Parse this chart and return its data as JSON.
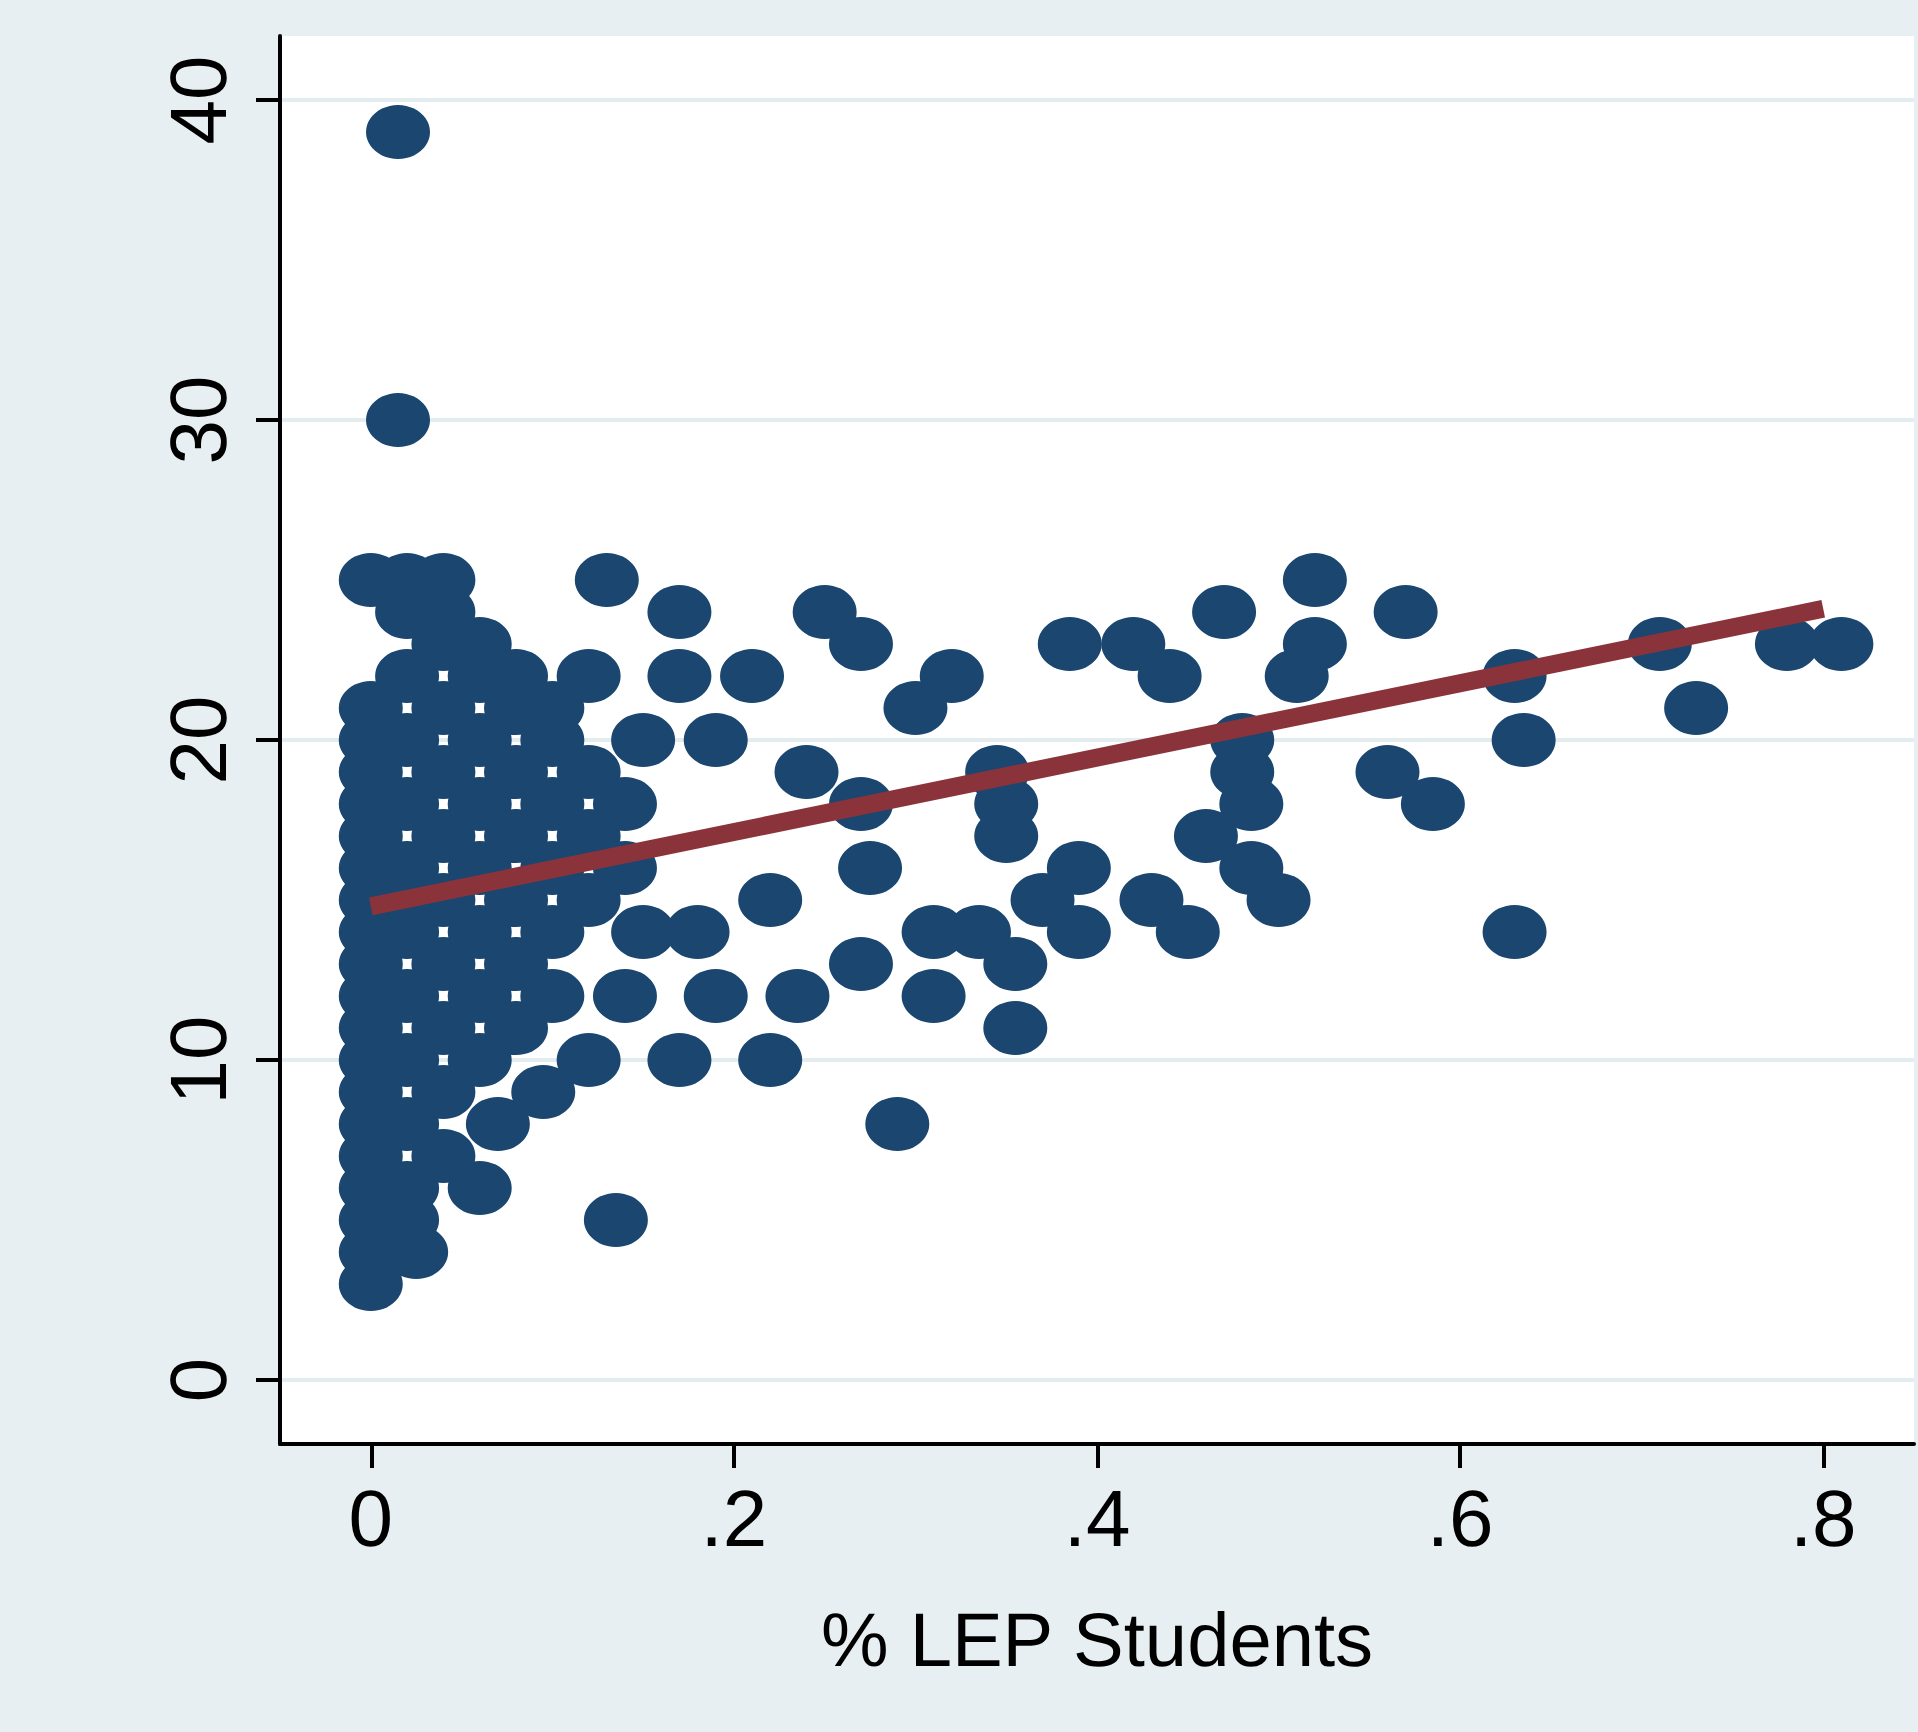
{
  "chart_data": {
    "type": "scatter",
    "xlabel": "% LEP Students",
    "xlim": [
      -0.05,
      0.85
    ],
    "ylim": [
      -2,
      42
    ],
    "xticks": [
      {
        "value": 0,
        "label": "0"
      },
      {
        "value": 0.2,
        "label": ".2"
      },
      {
        "value": 0.4,
        "label": ".4"
      },
      {
        "value": 0.6,
        "label": ".6"
      },
      {
        "value": 0.8,
        "label": ".8"
      }
    ],
    "yticks": [
      0,
      10,
      20,
      30,
      40
    ],
    "grid": "y",
    "series": [
      {
        "color": "#1a4670",
        "x": [
          0.015,
          0.015,
          0.13,
          0.52,
          0.25,
          0.47,
          0.57,
          0.17,
          0.385,
          0.42,
          0.52,
          0.27,
          0.71,
          0.78,
          0.81,
          0.44,
          0.51,
          0.63,
          0.32,
          0.21,
          0.17,
          0.73,
          0.3,
          0.635,
          0.48,
          0.19,
          0.345,
          0.56,
          0.24,
          0.48,
          0.585,
          0.485,
          0.27,
          0.35,
          0.46,
          0.35,
          0.275,
          0.39,
          0.485,
          0.22,
          0.37,
          0.43,
          0.5,
          0.18,
          0.31,
          0.39,
          0.45,
          0.63,
          0.335,
          0.27,
          0.355,
          0.19,
          0.235,
          0.31,
          0.355,
          0.17,
          0.22,
          0.12,
          0.29,
          0.135,
          0.06,
          0.025,
          0,
          0.07,
          0.095,
          0,
          0,
          0,
          0,
          0,
          0,
          0,
          0,
          0,
          0,
          0,
          0,
          0,
          0,
          0,
          0,
          0,
          0,
          0,
          0.02,
          0.02,
          0.02,
          0.02,
          0.02,
          0.02,
          0.02,
          0.02,
          0.02,
          0.02,
          0.02,
          0.02,
          0.04,
          0.04,
          0.04,
          0.04,
          0.04,
          0.04,
          0.04,
          0.04,
          0.04,
          0.04,
          0.04,
          0.06,
          0.06,
          0.06,
          0.06,
          0.06,
          0.06,
          0.06,
          0.06,
          0.08,
          0.08,
          0.08,
          0.08,
          0.08,
          0.08,
          0.08,
          0.1,
          0.1,
          0.1,
          0.1,
          0.1,
          0.1,
          0.12,
          0.12,
          0.12,
          0.12,
          0.14,
          0.14,
          0.14,
          0.15,
          0.15
        ],
        "values": [
          39,
          30,
          25,
          25,
          24,
          24,
          24,
          24,
          23,
          23,
          23,
          23,
          23,
          23,
          23,
          22,
          22,
          22,
          22,
          22,
          22,
          21,
          21,
          20,
          20,
          20,
          19,
          19,
          19,
          19,
          18,
          18,
          18,
          18,
          17,
          17,
          16,
          16,
          16,
          15,
          15,
          15,
          15,
          14,
          14,
          14,
          14,
          14,
          14,
          13,
          13,
          12,
          12,
          12,
          11,
          10,
          10,
          10,
          8,
          5,
          6,
          4,
          3,
          8,
          9,
          4,
          5,
          6,
          7,
          8,
          9,
          10,
          11,
          12,
          13,
          14,
          15,
          16,
          17,
          18,
          19,
          20,
          21,
          25,
          25,
          24,
          22,
          20,
          18,
          16,
          14,
          12,
          10,
          8,
          6,
          5,
          25,
          23,
          21,
          19,
          17,
          15,
          13,
          11,
          9,
          7,
          24,
          22,
          20,
          18,
          16,
          14,
          12,
          10,
          23,
          21,
          19,
          17,
          15,
          13,
          11,
          22,
          20,
          18,
          16,
          14,
          12,
          21,
          19,
          17,
          15,
          22,
          18,
          12,
          16,
          20,
          14
        ]
      },
      {
        "type": "line",
        "color": "#8b333b",
        "x": [
          0,
          0.8
        ],
        "values": [
          14.8,
          24.1
        ]
      }
    ]
  }
}
